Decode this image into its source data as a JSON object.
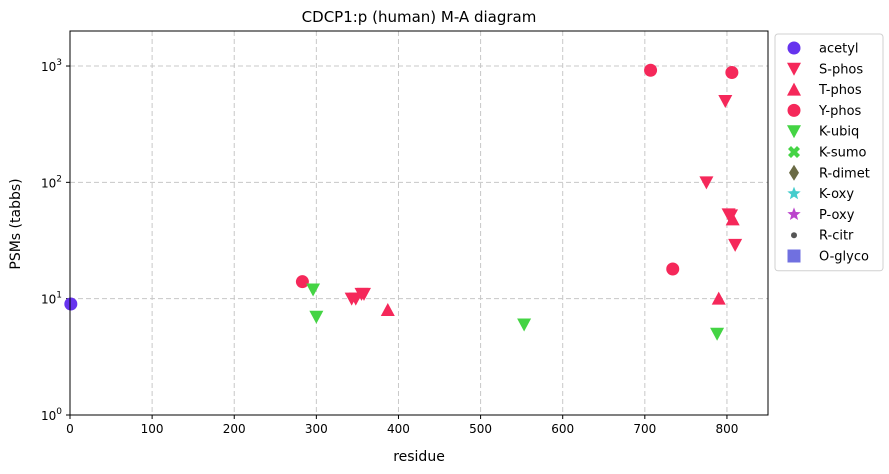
{
  "chart_data": {
    "type": "scatter",
    "title": "CDCP1:p (human) M-A diagram",
    "xlabel": "residue",
    "ylabel": "PSMs (tabbs)",
    "xlim": [
      0,
      850
    ],
    "ylim": [
      1,
      2000
    ],
    "yscale": "log",
    "xticks": [
      "0",
      "100",
      "200",
      "300",
      "400",
      "500",
      "600",
      "700",
      "800"
    ],
    "yticks": [
      {
        "value": 1,
        "base": "10",
        "exp": "0"
      },
      {
        "value": 10,
        "base": "10",
        "exp": "1"
      },
      {
        "value": 100,
        "base": "10",
        "exp": "2"
      },
      {
        "value": 1000,
        "base": "10",
        "exp": "3"
      }
    ],
    "grid": true,
    "legend_position": "outside-right",
    "series": [
      {
        "name": "acetyl",
        "marker": "circle",
        "color": "#6633ee",
        "points": [
          [
            1,
            9
          ]
        ]
      },
      {
        "name": "S-phos",
        "marker": "triangle-down",
        "color": "#f5285a",
        "points": [
          [
            343,
            10
          ],
          [
            348,
            10
          ],
          [
            355,
            11
          ],
          [
            358,
            11
          ],
          [
            775,
            100
          ],
          [
            798,
            500
          ],
          [
            802,
            53
          ],
          [
            805,
            52
          ],
          [
            810,
            29
          ]
        ]
      },
      {
        "name": "T-phos",
        "marker": "triangle-up",
        "color": "#f5285a",
        "points": [
          [
            387,
            8
          ],
          [
            790,
            10
          ],
          [
            807,
            48
          ]
        ]
      },
      {
        "name": "Y-phos",
        "marker": "circle",
        "color": "#f5285a",
        "points": [
          [
            283,
            14
          ],
          [
            707,
            920
          ],
          [
            734,
            18
          ],
          [
            806,
            880
          ]
        ]
      },
      {
        "name": "K-ubiq",
        "marker": "triangle-down",
        "color": "#44d444",
        "points": [
          [
            296,
            12
          ],
          [
            300,
            7
          ],
          [
            553,
            6
          ],
          [
            788,
            5
          ]
        ]
      },
      {
        "name": "K-sumo",
        "marker": "x",
        "color": "#44d444",
        "points": []
      },
      {
        "name": "R-dimet",
        "marker": "diamond",
        "color": "#6b6b45",
        "points": []
      },
      {
        "name": "K-oxy",
        "marker": "star",
        "color": "#44cccc",
        "points": []
      },
      {
        "name": "P-oxy",
        "marker": "star",
        "color": "#bb44cc",
        "points": []
      },
      {
        "name": "R-citr",
        "marker": "dot",
        "color": "#555555",
        "points": []
      },
      {
        "name": "O-glyco",
        "marker": "square",
        "color": "#7070e0",
        "points": []
      }
    ]
  }
}
